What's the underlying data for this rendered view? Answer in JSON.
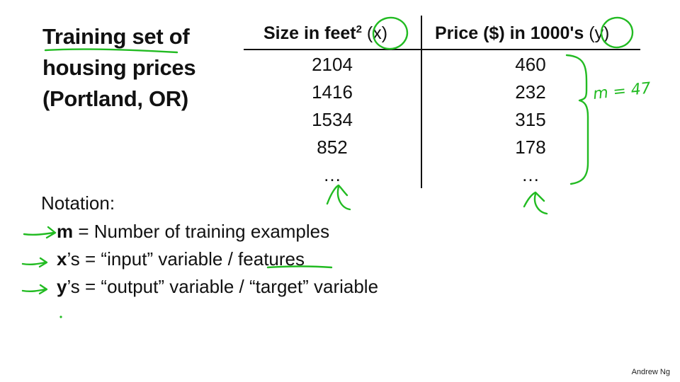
{
  "title": {
    "line1": "Training set of",
    "line2": "housing prices",
    "line3": "(Portland, OR)"
  },
  "table": {
    "col_x": {
      "label": "Size in feet",
      "sup": "2",
      "var": "(x)"
    },
    "col_y": {
      "label": "Price ($) in 1000's",
      "var": "(y)"
    },
    "x_values": [
      "2104",
      "1416",
      "1534",
      "852",
      "…"
    ],
    "y_values": [
      "460",
      "232",
      "315",
      "178",
      "…"
    ]
  },
  "annotation": {
    "m_label": "m = 47"
  },
  "notation": {
    "label": "Notation:",
    "m": {
      "var": "m",
      "text": " = Number of training examples"
    },
    "x": {
      "var": "x",
      "text": "’s = “input” variable / features"
    },
    "y": {
      "var": "y",
      "text": "’s = “output” variable / “target” variable"
    }
  },
  "footer": "Andrew Ng",
  "colors": {
    "ink": "#22bb22",
    "text": "#111111"
  },
  "icons": [
    "arrow-right-icon",
    "arrow-up-icon",
    "brace-icon",
    "circle-icon"
  ]
}
